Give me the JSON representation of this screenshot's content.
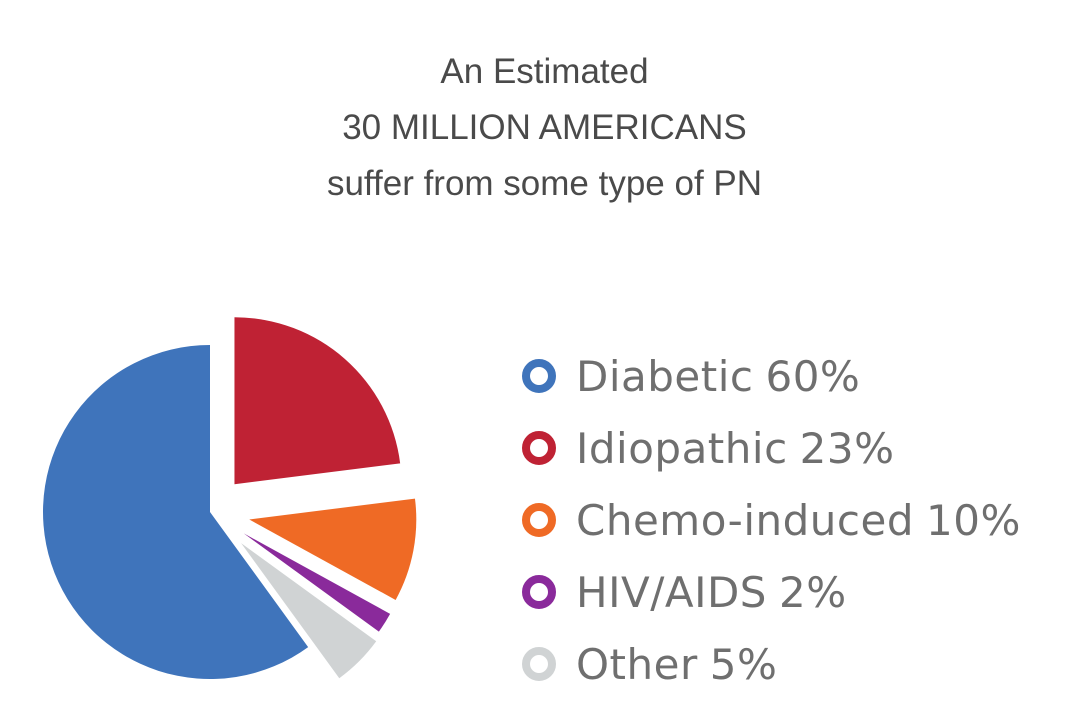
{
  "header": {
    "line1": "An Estimated",
    "line2": "30 MILLION AMERICANS",
    "line3": "suffer from some type of PN"
  },
  "chart_data": {
    "type": "pie",
    "title": "",
    "categories": [
      "Diabetic",
      "Idiopathic",
      "Chemo-induced",
      "HIV/AIDS",
      "Other"
    ],
    "values": [
      60,
      23,
      10,
      2,
      5
    ],
    "labels": [
      "60%",
      "23%",
      "10%",
      "2%",
      "5%"
    ],
    "colors": [
      "#3f74bb",
      "#bf2234",
      "#ef6a25",
      "#8a2a9b",
      "#d0d3d4"
    ],
    "legend_position": "right",
    "exploded": true
  }
}
